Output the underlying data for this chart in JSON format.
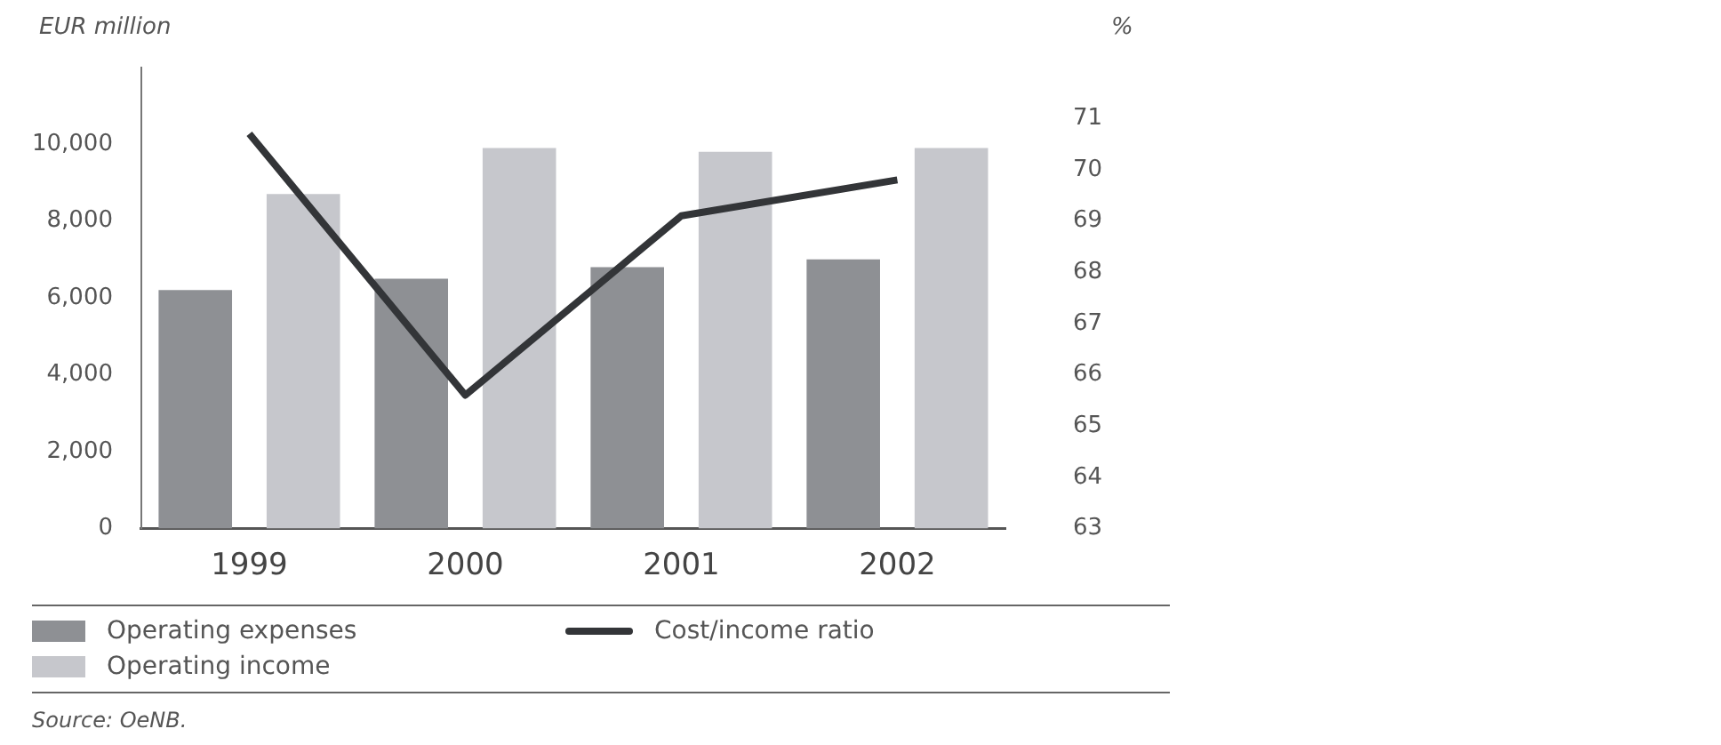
{
  "chart_data": {
    "type": "bar",
    "ylabel": "EUR million",
    "y2label": "%",
    "categories": [
      "1999",
      "2000",
      "2001",
      "2002"
    ],
    "series": [
      {
        "name": "Operating expenses",
        "color": "#8e9094",
        "values": [
          6200,
          6500,
          6800,
          7000
        ]
      },
      {
        "name": "Operating income",
        "color": "#c6c7cc",
        "values": [
          8700,
          9900,
          9800,
          9900
        ]
      },
      {
        "name": "Cost/income ratio",
        "type": "line",
        "axis": "y2",
        "color": "#333538",
        "values": [
          70.7,
          65.6,
          69.1,
          69.8
        ]
      }
    ],
    "ylim": [
      0,
      12000
    ],
    "yticks": [
      {
        "value": 0,
        "label": "0"
      },
      {
        "value": 2000,
        "label": "2,000"
      },
      {
        "value": 4000,
        "label": "4,000"
      },
      {
        "value": 6000,
        "label": "6,000"
      },
      {
        "value": 8000,
        "label": "8,000"
      },
      {
        "value": 10000,
        "label": "10,000"
      }
    ],
    "y2lim": [
      63,
      72
    ],
    "y2ticks": [
      63,
      64,
      65,
      66,
      67,
      68,
      69,
      70,
      71
    ],
    "legend": "bottom",
    "marker": "none",
    "line_style": "solid",
    "annotations": [
      "Source: OeNB."
    ]
  }
}
